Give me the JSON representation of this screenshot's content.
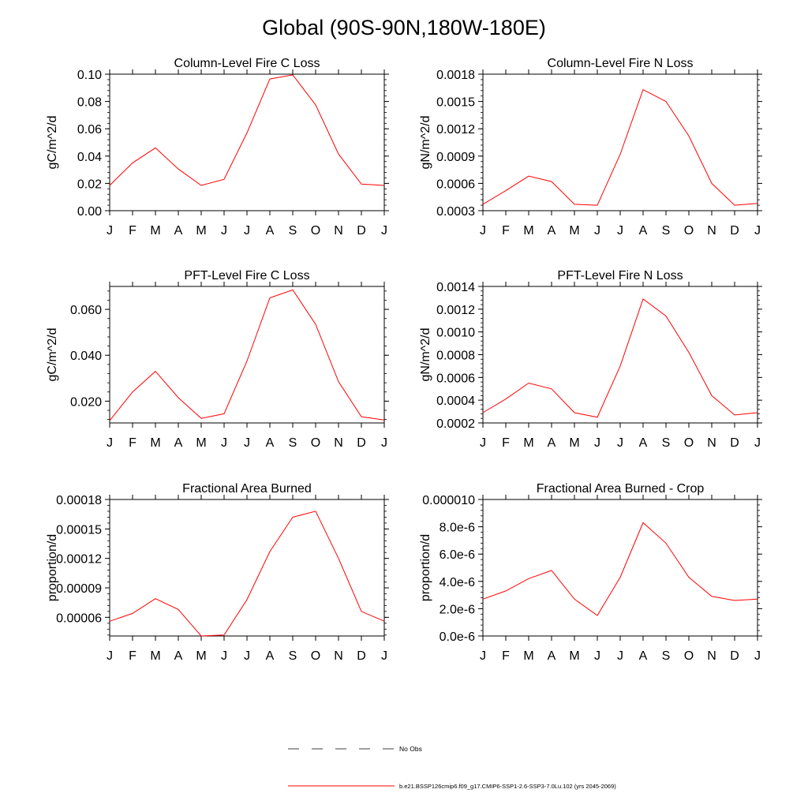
{
  "title": "Global (90S-90N,180W-180E)",
  "legend": {
    "obs_label": "No Obs",
    "model_label": "b.e21.BSSP126cmip6.f09_g17.CMIP6-SSP1-2.6-SSP3-7.0Lu.102 (yrs 2045-2069)",
    "model_color": "#ff0000",
    "obs_color": "#000000"
  },
  "chart_data": [
    {
      "type": "line",
      "title": "Column-Level Fire C Loss",
      "ylabel": "gC/m^2/d",
      "categories": [
        "J",
        "F",
        "M",
        "A",
        "M",
        "J",
        "J",
        "A",
        "S",
        "O",
        "N",
        "D",
        "J"
      ],
      "values": [
        0.0185,
        0.035,
        0.046,
        0.0305,
        0.0185,
        0.023,
        0.057,
        0.0965,
        0.0995,
        0.0775,
        0.0415,
        0.0195,
        0.0185
      ],
      "ylim": [
        0,
        0.1
      ],
      "yticks": [
        "0.00",
        "0.02",
        "0.04",
        "0.06",
        "0.08",
        "0.10"
      ],
      "ytick_values": [
        0,
        0.02,
        0.04,
        0.06,
        0.08,
        0.1
      ]
    },
    {
      "type": "line",
      "title": "Column-Level Fire N Loss",
      "ylabel": "gN/m^2/d",
      "categories": [
        "J",
        "F",
        "M",
        "A",
        "M",
        "J",
        "J",
        "A",
        "S",
        "O",
        "N",
        "D",
        "J"
      ],
      "values": [
        0.00037,
        0.00052,
        0.00068,
        0.00062,
        0.00037,
        0.00036,
        0.00092,
        0.00163,
        0.0015,
        0.00112,
        0.0006,
        0.00036,
        0.00038
      ],
      "ylim": [
        0.0003,
        0.0018
      ],
      "yticks": [
        "0.0003",
        "0.0006",
        "0.0009",
        "0.0012",
        "0.0015",
        "0.0018"
      ],
      "ytick_values": [
        0.0003,
        0.0006,
        0.0009,
        0.0012,
        0.0015,
        0.0018
      ]
    },
    {
      "type": "line",
      "title": "PFT-Level Fire C Loss",
      "ylabel": "gC/m^2/d",
      "categories": [
        "J",
        "F",
        "M",
        "A",
        "M",
        "J",
        "J",
        "A",
        "S",
        "O",
        "N",
        "D",
        "J"
      ],
      "values": [
        0.0115,
        0.024,
        0.033,
        0.0215,
        0.0125,
        0.0145,
        0.0375,
        0.065,
        0.0685,
        0.0535,
        0.0285,
        0.0132,
        0.0118
      ],
      "ylim": [
        0.0105,
        0.07
      ],
      "yticks": [
        "0.020",
        "0.040",
        "0.060"
      ],
      "ytick_values": [
        0.02,
        0.04,
        0.06
      ]
    },
    {
      "type": "line",
      "title": "PFT-Level Fire N Loss",
      "ylabel": "gN/m^2/d",
      "categories": [
        "J",
        "F",
        "M",
        "A",
        "M",
        "J",
        "J",
        "A",
        "S",
        "O",
        "N",
        "D",
        "J"
      ],
      "values": [
        0.00029,
        0.00041,
        0.00055,
        0.0005,
        0.00029,
        0.00025,
        0.0007,
        0.00129,
        0.00114,
        0.00082,
        0.00044,
        0.00027,
        0.00029
      ],
      "ylim": [
        0.0002,
        0.0014
      ],
      "yticks": [
        "0.0002",
        "0.0004",
        "0.0006",
        "0.0008",
        "0.0010",
        "0.0012",
        "0.0014"
      ],
      "ytick_values": [
        0.0002,
        0.0004,
        0.0006,
        0.0008,
        0.001,
        0.0012,
        0.0014
      ]
    },
    {
      "type": "line",
      "title": "Fractional Area Burned",
      "ylabel": "proportion/d",
      "categories": [
        "J",
        "F",
        "M",
        "A",
        "M",
        "J",
        "J",
        "A",
        "S",
        "O",
        "N",
        "D",
        "J"
      ],
      "values": [
        5.6e-05,
        6.4e-05,
        7.9e-05,
        6.8e-05,
        4.1e-05,
        4.2e-05,
        7.8e-05,
        0.000127,
        0.000162,
        0.000168,
        0.00012,
        6.6e-05,
        5.6e-05
      ],
      "ylim": [
        4.1e-05,
        0.00018
      ],
      "yticks": [
        "0.00006",
        "0.00009",
        "0.00012",
        "0.00015",
        "0.00018"
      ],
      "ytick_values": [
        6e-05,
        9e-05,
        0.00012,
        0.00015,
        0.00018
      ]
    },
    {
      "type": "line",
      "title": "Fractional Area Burned - Crop",
      "ylabel": "proportion/d",
      "categories": [
        "J",
        "F",
        "M",
        "A",
        "M",
        "J",
        "J",
        "A",
        "S",
        "O",
        "N",
        "D",
        "J"
      ],
      "values": [
        2.7e-06,
        3.3e-06,
        4.2e-06,
        4.8e-06,
        2.7e-06,
        1.5e-06,
        4.3e-06,
        8.3e-06,
        6.8e-06,
        4.3e-06,
        2.9e-06,
        2.6e-06,
        2.7e-06
      ],
      "ylim": [
        0,
        1e-05
      ],
      "yticks": [
        "0.0e-6",
        "2.0e-6",
        "4.0e-6",
        "6.0e-6",
        "8.0e-6",
        "0.000010"
      ],
      "ytick_values": [
        0,
        2e-06,
        4e-06,
        6e-06,
        8e-06,
        1e-05
      ]
    }
  ]
}
